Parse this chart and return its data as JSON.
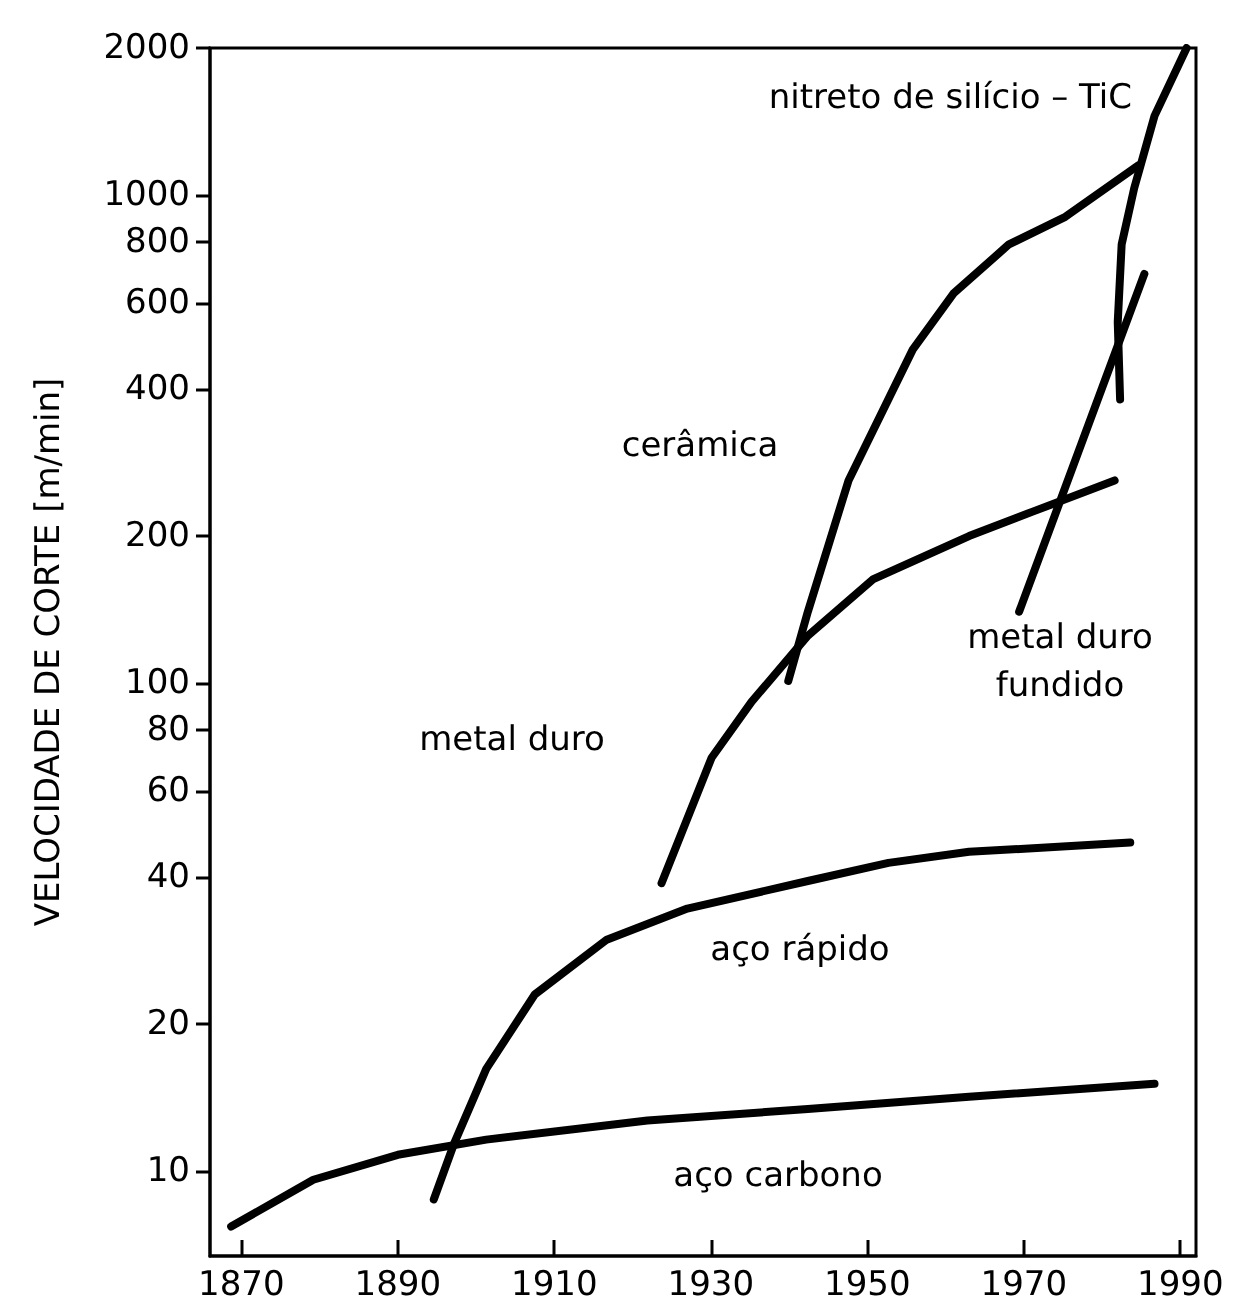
{
  "chart_data": {
    "type": "line",
    "ylabel": "VELOCIDADE DE CORTE [m/min]",
    "log": "y",
    "grid": false,
    "legend": false,
    "marker": "none",
    "line_style": "solid",
    "xlim": [
      1866,
      1992
    ],
    "xticks": [
      1870,
      1890,
      1910,
      1930,
      1950,
      1970,
      1990
    ],
    "ylim": [
      6.7,
      2000
    ],
    "yticks": [
      10,
      20,
      40,
      60,
      80,
      100,
      200,
      400,
      600,
      800,
      1000,
      2000
    ],
    "series": [
      {
        "name": "aço carbono",
        "color": "#000000",
        "x": [
          1868.7,
          1879.2,
          1890,
          1901.3,
          1921.9,
          1942.4,
          1963,
          1986.7
        ],
        "values": [
          7.7,
          9.6,
          10.8,
          11.6,
          12.7,
          13.4,
          14.2,
          15.1
        ]
      },
      {
        "name": "aço rápido",
        "color": "#000000",
        "x": [
          1894.6,
          1897.2,
          1901.3,
          1907.5,
          1916.7,
          1927,
          1942.4,
          1952.7,
          1963,
          1983.6
        ],
        "values": [
          8.75,
          11.4,
          16.2,
          23,
          29.8,
          34.5,
          39.3,
          42.8,
          45.1,
          47.1
        ]
      },
      {
        "name": "metal duro",
        "color": "#000000",
        "x": [
          1923.7,
          1930.1,
          1935.2,
          1942.4,
          1950.7,
          1963,
          1971.3,
          1981.6
        ],
        "values": [
          38.9,
          70.3,
          91.5,
          125,
          163,
          200,
          225,
          260
        ]
      },
      {
        "name": "cerâmica",
        "color": "#000000",
        "x": [
          1939.9,
          1942.4,
          1947.6,
          1955.8,
          1961,
          1968.1,
          1975.3,
          1984.6
        ],
        "values": [
          101,
          140,
          260,
          482,
          628,
          792,
          902,
          1149
        ]
      },
      {
        "name": "metal duro fundido",
        "color": "#000000",
        "x": [
          1969.4,
          1974.6,
          1985.4
        ],
        "values": [
          140,
          235,
          689
        ]
      },
      {
        "name": "nitreto de silício – TiC",
        "color": "#000000",
        "x": [
          1982.3,
          1982,
          1982.5,
          1984.1,
          1986.7,
          1990.8
        ],
        "values": [
          381,
          549,
          792,
          1032,
          1452,
          2000
        ]
      }
    ]
  }
}
